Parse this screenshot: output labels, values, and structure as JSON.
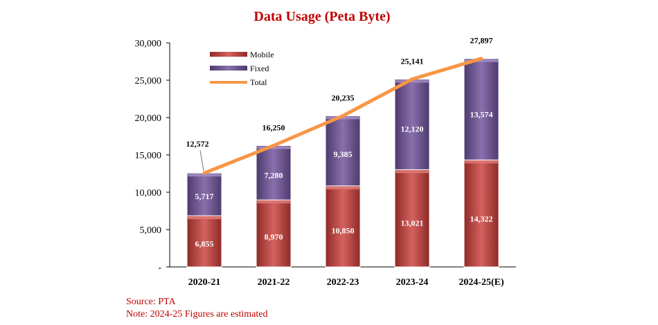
{
  "chart_data": {
    "type": "bar",
    "title": "Data Usage (Peta Byte)",
    "categories": [
      "2020-21",
      "2021-22",
      "2022-23",
      "2023-24",
      "2024-25(E)"
    ],
    "series": [
      {
        "name": "Mobile",
        "values": [
          6855,
          8970,
          10850,
          13021,
          14322
        ],
        "labels": [
          "6,855",
          "8,970",
          "10,850",
          "13,021",
          "14,322"
        ]
      },
      {
        "name": "Fixed",
        "values": [
          5717,
          7280,
          9385,
          12120,
          13574
        ],
        "labels": [
          "5,717",
          "7,280",
          "9,385",
          "12,120",
          "13,574"
        ]
      }
    ],
    "line": {
      "name": "Total",
      "values": [
        12572,
        16250,
        20235,
        25141,
        27897
      ],
      "labels": [
        "12,572",
        "16,250",
        "20,235",
        "25,141",
        "27,897"
      ]
    },
    "stacked": true,
    "ylim": [
      0,
      30000
    ],
    "yticks": [
      "-",
      "5,000",
      "10,000",
      "15,000",
      "20,000",
      "25,000",
      "30,000"
    ],
    "xlabel": "",
    "ylabel": "",
    "legend_position": "top-left",
    "colors": {
      "Mobile": "#c0504d",
      "Fixed": "#8064a2",
      "Total": "#f79646"
    }
  },
  "footnotes": {
    "source": "Source: PTA",
    "note": "Note: 2024-25 Figures are estimated"
  }
}
